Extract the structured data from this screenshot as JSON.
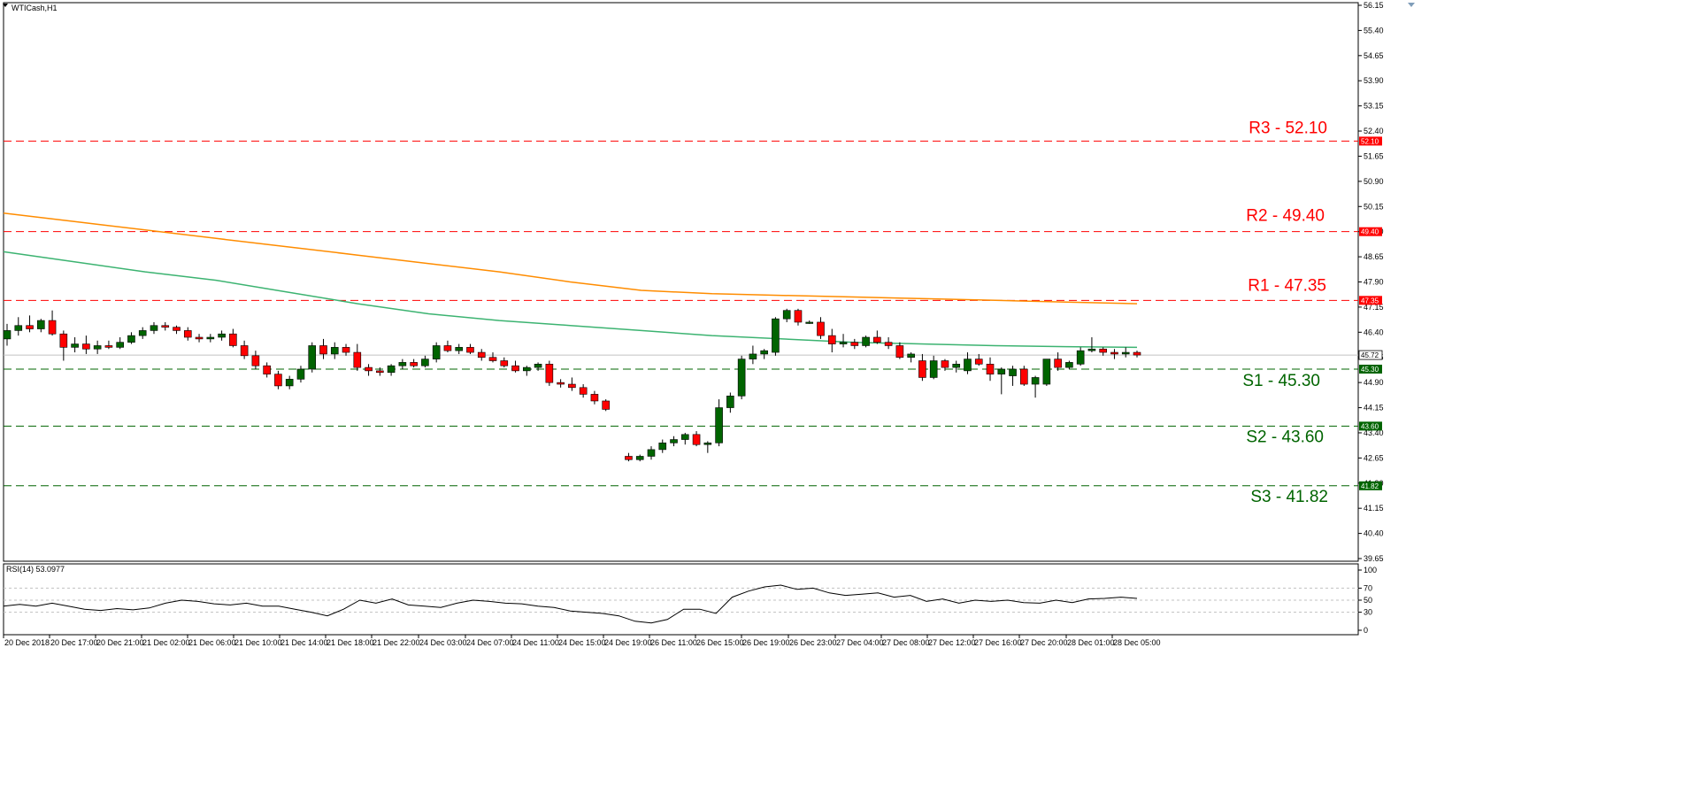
{
  "window": {
    "symbol_label": "WTICash,H1"
  },
  "colors": {
    "bull": "#006400",
    "bear": "#ff0000",
    "ma_fast": "#3cb371",
    "ma_slow": "#ff8c00",
    "resistance": "#ff0000",
    "support": "#006400",
    "rsi_line": "#000000"
  },
  "chart_data": [
    {
      "type": "candlestick",
      "title": "WTICash,H1",
      "ylim": [
        39.65,
        56.15
      ],
      "y_ticks": [
        "56.15",
        "55.40",
        "54.65",
        "53.90",
        "53.15",
        "52.40",
        "51.65",
        "50.90",
        "50.15",
        "49.40",
        "48.65",
        "47.90",
        "47.15",
        "46.40",
        "45.65",
        "44.90",
        "44.15",
        "43.40",
        "42.65",
        "41.90",
        "41.15",
        "40.40",
        "39.65"
      ],
      "x_tick_labels": [
        "20 Dec 2018",
        "20 Dec 17:00",
        "20 Dec 21:00",
        "21 Dec 02:00",
        "21 Dec 06:00",
        "21 Dec 10:00",
        "21 Dec 14:00",
        "21 Dec 18:00",
        "21 Dec 22:00",
        "24 Dec 03:00",
        "24 Dec 07:00",
        "24 Dec 11:00",
        "24 Dec 15:00",
        "24 Dec 19:00",
        "26 Dec 11:00",
        "26 Dec 15:00",
        "26 Dec 19:00",
        "26 Dec 23:00",
        "27 Dec 04:00",
        "27 Dec 08:00",
        "27 Dec 12:00",
        "27 Dec 16:00",
        "27 Dec 20:00",
        "28 Dec 01:00",
        "28 Dec 05:00"
      ],
      "current_price": "45.72",
      "ohlc": [
        [
          46.2,
          46.65,
          46.0,
          46.45
        ],
        [
          46.45,
          46.85,
          46.3,
          46.6
        ],
        [
          46.6,
          46.9,
          46.4,
          46.5
        ],
        [
          46.5,
          46.8,
          46.4,
          46.75
        ],
        [
          46.75,
          47.05,
          46.3,
          46.35
        ],
        [
          46.35,
          46.45,
          45.55,
          45.95
        ],
        [
          45.95,
          46.25,
          45.8,
          46.05
        ],
        [
          46.05,
          46.3,
          45.75,
          45.9
        ],
        [
          45.9,
          46.15,
          45.75,
          46.0
        ],
        [
          46.0,
          46.15,
          45.9,
          45.95
        ],
        [
          45.95,
          46.25,
          45.9,
          46.1
        ],
        [
          46.1,
          46.4,
          46.05,
          46.3
        ],
        [
          46.3,
          46.55,
          46.2,
          46.45
        ],
        [
          46.45,
          46.7,
          46.35,
          46.6
        ],
        [
          46.6,
          46.7,
          46.45,
          46.55
        ],
        [
          46.55,
          46.6,
          46.35,
          46.45
        ],
        [
          46.45,
          46.55,
          46.15,
          46.25
        ],
        [
          46.25,
          46.35,
          46.1,
          46.2
        ],
        [
          46.2,
          46.35,
          46.1,
          46.25
        ],
        [
          46.25,
          46.45,
          46.15,
          46.35
        ],
        [
          46.35,
          46.5,
          45.95,
          46.0
        ],
        [
          46.0,
          46.15,
          45.6,
          45.7
        ],
        [
          45.7,
          45.85,
          45.3,
          45.4
        ],
        [
          45.4,
          45.5,
          45.05,
          45.15
        ],
        [
          45.15,
          45.25,
          44.7,
          44.8
        ],
        [
          44.8,
          45.1,
          44.7,
          45.0
        ],
        [
          45.0,
          45.4,
          44.9,
          45.3
        ],
        [
          45.3,
          46.1,
          45.2,
          46.0
        ],
        [
          46.0,
          46.2,
          45.6,
          45.75
        ],
        [
          45.75,
          46.1,
          45.6,
          45.95
        ],
        [
          45.95,
          46.05,
          45.7,
          45.8
        ],
        [
          45.8,
          46.05,
          45.25,
          45.35
        ],
        [
          45.35,
          45.45,
          45.1,
          45.25
        ],
        [
          45.25,
          45.35,
          45.1,
          45.2
        ],
        [
          45.2,
          45.45,
          45.1,
          45.4
        ],
        [
          45.4,
          45.6,
          45.3,
          45.5
        ],
        [
          45.5,
          45.6,
          45.35,
          45.4
        ],
        [
          45.4,
          45.7,
          45.35,
          45.6
        ],
        [
          45.6,
          46.1,
          45.5,
          46.0
        ],
        [
          46.0,
          46.15,
          45.8,
          45.85
        ],
        [
          45.85,
          46.05,
          45.75,
          45.95
        ],
        [
          45.95,
          46.05,
          45.75,
          45.8
        ],
        [
          45.8,
          45.9,
          45.55,
          45.65
        ],
        [
          45.65,
          45.8,
          45.5,
          45.55
        ],
        [
          45.55,
          45.65,
          45.35,
          45.4
        ],
        [
          45.4,
          45.55,
          45.2,
          45.25
        ],
        [
          45.25,
          45.4,
          45.1,
          45.35
        ],
        [
          45.35,
          45.5,
          45.25,
          45.45
        ],
        [
          45.45,
          45.55,
          44.8,
          44.9
        ],
        [
          44.9,
          45.0,
          44.75,
          44.85
        ],
        [
          44.85,
          45.05,
          44.65,
          44.75
        ],
        [
          44.75,
          44.85,
          44.45,
          44.55
        ],
        [
          44.55,
          44.65,
          44.25,
          44.35
        ],
        [
          44.35,
          44.4,
          44.05,
          44.1
        ],
        [
          42.7,
          42.8,
          42.55,
          42.6
        ],
        [
          42.6,
          42.75,
          42.55,
          42.7
        ],
        [
          42.7,
          43.0,
          42.6,
          42.9
        ],
        [
          42.9,
          43.2,
          42.8,
          43.1
        ],
        [
          43.1,
          43.3,
          43.0,
          43.2
        ],
        [
          43.2,
          43.4,
          43.05,
          43.35
        ],
        [
          43.35,
          43.45,
          43.0,
          43.05
        ],
        [
          43.05,
          43.15,
          42.8,
          43.1
        ],
        [
          43.1,
          44.4,
          43.0,
          44.15
        ],
        [
          44.15,
          44.6,
          44.0,
          44.5
        ],
        [
          44.5,
          45.7,
          44.4,
          45.6
        ],
        [
          45.6,
          46.0,
          45.45,
          45.75
        ],
        [
          45.75,
          45.9,
          45.6,
          45.85
        ],
        [
          45.8,
          46.85,
          45.7,
          46.8
        ],
        [
          46.8,
          47.1,
          46.7,
          47.05
        ],
        [
          47.05,
          47.1,
          46.6,
          46.7
        ],
        [
          46.7,
          46.75,
          46.65,
          46.7
        ],
        [
          46.7,
          46.85,
          46.2,
          46.3
        ],
        [
          46.3,
          46.5,
          45.8,
          46.05
        ],
        [
          46.05,
          46.35,
          45.95,
          46.1
        ],
        [
          46.1,
          46.2,
          45.9,
          46.0
        ],
        [
          46.0,
          46.3,
          45.95,
          46.25
        ],
        [
          46.25,
          46.45,
          46.05,
          46.1
        ],
        [
          46.1,
          46.25,
          45.9,
          46.0
        ],
        [
          46.0,
          46.1,
          45.6,
          45.65
        ],
        [
          45.65,
          45.8,
          45.5,
          45.75
        ],
        [
          45.55,
          45.75,
          44.95,
          45.05
        ],
        [
          45.05,
          45.7,
          45.0,
          45.55
        ],
        [
          45.55,
          45.6,
          45.25,
          45.35
        ],
        [
          45.35,
          45.55,
          45.2,
          45.45
        ],
        [
          45.25,
          45.8,
          45.15,
          45.6
        ],
        [
          45.6,
          45.75,
          45.4,
          45.45
        ],
        [
          45.45,
          45.65,
          44.95,
          45.15
        ],
        [
          45.15,
          45.35,
          44.55,
          45.3
        ],
        [
          45.1,
          45.4,
          44.8,
          45.3
        ],
        [
          45.3,
          45.4,
          44.8,
          44.85
        ],
        [
          44.85,
          45.1,
          44.45,
          45.05
        ],
        [
          44.85,
          45.6,
          44.8,
          45.6
        ],
        [
          45.6,
          45.8,
          45.25,
          45.35
        ],
        [
          45.35,
          45.55,
          45.3,
          45.5
        ],
        [
          45.45,
          45.95,
          45.4,
          45.85
        ],
        [
          45.85,
          46.25,
          45.8,
          45.9
        ],
        [
          45.9,
          45.95,
          45.7,
          45.8
        ],
        [
          45.8,
          45.9,
          45.6,
          45.75
        ],
        [
          45.75,
          45.95,
          45.65,
          45.8
        ],
        [
          45.8,
          45.85,
          45.65,
          45.72
        ]
      ],
      "ma_fast": [
        48.8,
        48.5,
        48.2,
        47.95,
        47.6,
        47.25,
        46.95,
        46.75,
        46.6,
        46.45,
        46.3,
        46.2,
        46.1,
        46.05,
        46.0,
        45.97,
        45.95
      ],
      "ma_slow": [
        49.95,
        49.7,
        49.45,
        49.2,
        48.95,
        48.7,
        48.45,
        48.2,
        47.9,
        47.65,
        47.55,
        47.5,
        47.45,
        47.4,
        47.35,
        47.3,
        47.25
      ],
      "levels": [
        {
          "name": "R3",
          "value": 52.1,
          "label": "R3  - 52.10",
          "tag": "52.10",
          "kind": "resistance"
        },
        {
          "name": "R2",
          "value": 49.4,
          "label": "R2 - 49.40",
          "tag": "49.40",
          "kind": "resistance"
        },
        {
          "name": "R1",
          "value": 47.35,
          "label": "R1  - 47.35",
          "tag": "47.35",
          "kind": "resistance"
        },
        {
          "name": "S1",
          "value": 45.3,
          "label": "S1 - 45.30",
          "tag": "45.30",
          "kind": "support"
        },
        {
          "name": "S2",
          "value": 43.6,
          "label": "S2 - 43.60",
          "tag": "43.60",
          "kind": "support"
        },
        {
          "name": "S3",
          "value": 41.82,
          "label": "S3  - 41.82",
          "tag": "41.82",
          "kind": "support"
        }
      ]
    },
    {
      "type": "line",
      "title": "RSI(14) 53.0977",
      "ylim": [
        0,
        100
      ],
      "y_ticks": [
        "100",
        "70",
        "50",
        "30",
        "0"
      ],
      "levels": [
        70,
        50,
        30
      ],
      "values": [
        40,
        43,
        40,
        45,
        40,
        35,
        33,
        36,
        34,
        37,
        45,
        50,
        48,
        44,
        42,
        45,
        40,
        40,
        35,
        30,
        24,
        35,
        50,
        45,
        52,
        42,
        40,
        38,
        45,
        50,
        48,
        45,
        44,
        40,
        38,
        32,
        30,
        28,
        24,
        15,
        12,
        18,
        35,
        35,
        28,
        55,
        65,
        72,
        75,
        68,
        70,
        62,
        58,
        60,
        62,
        55,
        58,
        48,
        52,
        45,
        50,
        48,
        50,
        46,
        45,
        50,
        46,
        52,
        53,
        55,
        53
      ]
    }
  ]
}
